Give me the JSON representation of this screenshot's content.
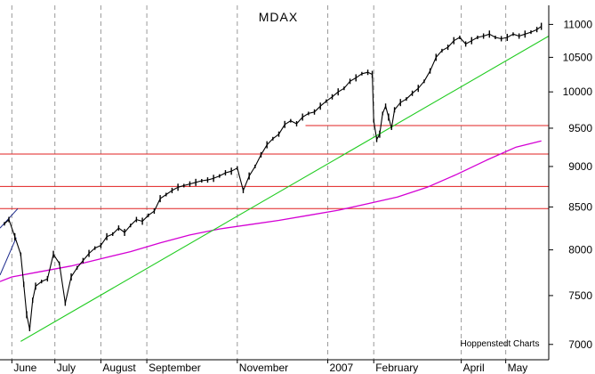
{
  "chart_data": {
    "type": "line",
    "title": "MDAX",
    "credit": "Hoppenstedt Charts",
    "grid": "vertical dashed at month starts",
    "y_axis_side": "right",
    "ylim": [
      6850,
      11300
    ],
    "y_ticks": [
      7000,
      7500,
      8000,
      8500,
      9000,
      9500,
      10000,
      10500,
      11000
    ],
    "x_months": [
      {
        "label": "June",
        "day": 0
      },
      {
        "label": "July",
        "day": 29
      },
      {
        "label": "August",
        "day": 60
      },
      {
        "label": "September",
        "day": 91
      },
      {
        "label": "November",
        "day": 152
      },
      {
        "label": "2007",
        "day": 213
      },
      {
        "label": "February",
        "day": 244
      },
      {
        "label": "April",
        "day": 303
      },
      {
        "label": "May",
        "day": 333
      }
    ],
    "x_range_days": [
      -8,
      362
    ],
    "price_series": {
      "name": "MDAX",
      "x": [
        -5,
        -2,
        2,
        6,
        8,
        10,
        12,
        14,
        16,
        20,
        24,
        28,
        32,
        36,
        40,
        44,
        48,
        52,
        56,
        60,
        64,
        68,
        72,
        76,
        80,
        84,
        88,
        92,
        96,
        100,
        104,
        108,
        112,
        116,
        120,
        124,
        128,
        132,
        136,
        140,
        144,
        148,
        152,
        156,
        160,
        164,
        168,
        172,
        176,
        180,
        184,
        188,
        192,
        196,
        200,
        204,
        208,
        212,
        216,
        220,
        224,
        228,
        232,
        236,
        240,
        243,
        244,
        246,
        248,
        250,
        252,
        254,
        256,
        258,
        262,
        266,
        270,
        274,
        278,
        282,
        286,
        290,
        294,
        298,
        302,
        306,
        310,
        314,
        318,
        322,
        326,
        330,
        334,
        338,
        342,
        346,
        350,
        354,
        357
      ],
      "y": [
        8300,
        8350,
        8150,
        7950,
        7620,
        7300,
        7150,
        7450,
        7600,
        7650,
        7680,
        7950,
        7850,
        7420,
        7700,
        7800,
        7880,
        7960,
        8020,
        8050,
        8150,
        8180,
        8250,
        8200,
        8280,
        8350,
        8330,
        8400,
        8450,
        8600,
        8650,
        8700,
        8740,
        8760,
        8780,
        8800,
        8820,
        8830,
        8850,
        8880,
        8920,
        8940,
        8980,
        8700,
        8880,
        9000,
        9150,
        9280,
        9360,
        9420,
        9550,
        9600,
        9560,
        9650,
        9700,
        9720,
        9800,
        9870,
        9930,
        10000,
        10050,
        10150,
        10200,
        10260,
        10280,
        10250,
        9600,
        9350,
        9420,
        9700,
        9800,
        9650,
        9500,
        9750,
        9850,
        9900,
        9980,
        10050,
        10150,
        10300,
        10500,
        10600,
        10650,
        10750,
        10800,
        10700,
        10750,
        10800,
        10820,
        10850,
        10800,
        10780,
        10800,
        10850,
        10820,
        10850,
        10880,
        10920,
        10970
      ]
    },
    "moving_average": {
      "x": [
        -8,
        0,
        20,
        40,
        60,
        80,
        100,
        120,
        140,
        160,
        180,
        200,
        220,
        240,
        260,
        280,
        300,
        320,
        340,
        357
      ],
      "y": [
        7650,
        7700,
        7760,
        7820,
        7900,
        7980,
        8080,
        8170,
        8240,
        8290,
        8340,
        8400,
        8460,
        8540,
        8620,
        8740,
        8900,
        9080,
        9250,
        9330
      ]
    },
    "trendline_green": {
      "x": [
        6,
        362
      ],
      "y": [
        7030,
        10820
      ]
    },
    "horizontal_levels": [
      {
        "y": 9535,
        "x_start": 198
      },
      {
        "y": 9160,
        "x_start": -8
      },
      {
        "y": 8750,
        "x_start": -8
      },
      {
        "y": 8480,
        "x_start": -8
      }
    ],
    "channel_lines_blue": [
      {
        "x": [
          -8,
          4
        ],
        "y": [
          8250,
          8480
        ]
      },
      {
        "x": [
          -8,
          3
        ],
        "y": [
          7720,
          8140
        ]
      }
    ],
    "colors": {
      "price": "#000000",
      "moving_average": "#d400d4",
      "trendline": "#22cc22",
      "levels": "#e02020",
      "channel": "#1c2a8c",
      "grid": "#9a9a9a"
    }
  }
}
